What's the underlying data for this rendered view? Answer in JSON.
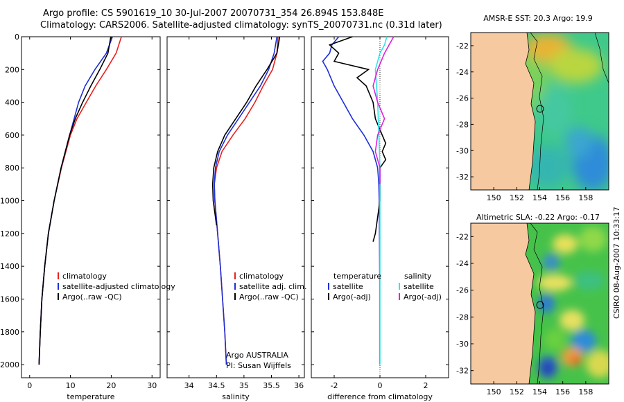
{
  "title_line1": "Argo profile: CS 5901619_10 30-Jul-2007 20070731_354 26.894S 153.848E",
  "title_line2": "Climatology: CARS2006. Satellite-adjusted climatology: synTS_20070731.nc (0.31d later)",
  "side_stamp": "CSIRO 08-Aug-2007 10:33:17",
  "colors": {
    "red": "#e8201c",
    "blue": "#1c2fd8",
    "black": "#000000",
    "cyan": "#2fe6e6",
    "magenta": "#e020e0",
    "land": "#f7c9a0"
  },
  "chart_data": [
    {
      "type": "line",
      "xlabel": "temperature",
      "xlim": [
        -2,
        32
      ],
      "ylim": [
        0,
        2080
      ],
      "xticks": [
        0,
        10,
        20,
        30
      ],
      "yticks": [
        0,
        200,
        400,
        600,
        800,
        1000,
        1200,
        1400,
        1600,
        1800,
        2000
      ],
      "legend": [
        "climatology",
        "satellite-adjusted climatology",
        "Argo(..raw -QC)"
      ],
      "series": [
        {
          "name": "climatology",
          "color": "red",
          "depth": [
            0,
            100,
            200,
            300,
            400,
            500,
            600,
            800,
            1000,
            1200,
            1400,
            1600,
            1800,
            2000
          ],
          "values": [
            22.5,
            21.2,
            18.8,
            16.2,
            13.9,
            11.6,
            10.0,
            7.8,
            6.0,
            4.6,
            3.7,
            3.0,
            2.6,
            2.3
          ]
        },
        {
          "name": "satellite-adjusted climatology",
          "color": "blue",
          "depth": [
            0,
            100,
            200,
            300,
            400,
            500,
            600,
            800,
            1000,
            1200,
            1400,
            1600,
            1800,
            2000
          ],
          "values": [
            20.3,
            18.8,
            16.0,
            13.6,
            12.0,
            10.9,
            9.8,
            7.7,
            6.0,
            4.6,
            3.7,
            3.0,
            2.6,
            2.3
          ]
        },
        {
          "name": "Argo(..raw -QC)",
          "color": "black",
          "depth": [
            0,
            100,
            200,
            300,
            400,
            500,
            600,
            800,
            1000,
            1200,
            1400,
            1600,
            1800,
            2000
          ],
          "values": [
            19.9,
            19.2,
            17.2,
            15.0,
            13.0,
            11.2,
            9.8,
            7.7,
            6.0,
            4.6,
            3.7,
            3.0,
            2.6,
            2.3
          ]
        }
      ]
    },
    {
      "type": "line",
      "xlabel": "salinity",
      "xlim": [
        33.6,
        36.1
      ],
      "ylim": [
        0,
        2080
      ],
      "xticks": [
        34,
        34.5,
        35,
        35.5,
        36
      ],
      "legend": [
        "climatology",
        "satellite adj. clim.",
        "Argo(..raw -QC)"
      ],
      "annotation": [
        "Argo AUSTRALIA",
        "PI: Susan Wijffels"
      ],
      "series": [
        {
          "name": "climatology",
          "color": "red",
          "depth": [
            0,
            100,
            200,
            300,
            400,
            500,
            600,
            700,
            800,
            900,
            1000,
            1200,
            1400,
            1600,
            1800,
            2000
          ],
          "values": [
            35.62,
            35.6,
            35.52,
            35.35,
            35.2,
            35.02,
            34.8,
            34.6,
            34.5,
            34.46,
            34.47,
            34.52,
            34.57,
            34.61,
            34.65,
            34.68
          ]
        },
        {
          "name": "satellite adj. clim.",
          "color": "blue",
          "depth": [
            0,
            100,
            200,
            300,
            400,
            500,
            600,
            700,
            800,
            900,
            1000,
            1200,
            1400,
            1600,
            1800,
            2000
          ],
          "values": [
            35.6,
            35.55,
            35.45,
            35.3,
            35.1,
            34.9,
            34.7,
            34.55,
            34.48,
            34.46,
            34.47,
            34.52,
            34.57,
            34.61,
            34.65,
            34.68
          ]
        },
        {
          "name": "Argo(..raw -QC)",
          "color": "black",
          "depth": [
            0,
            100,
            200,
            300,
            400,
            500,
            600,
            700,
            800,
            900,
            1000,
            1100,
            1150
          ],
          "values": [
            35.65,
            35.6,
            35.42,
            35.22,
            35.05,
            34.85,
            34.65,
            34.52,
            34.45,
            34.43,
            34.44,
            34.48,
            34.5
          ]
        }
      ]
    },
    {
      "type": "line",
      "xlabel": "difference from climatology",
      "xlim": [
        -3,
        3
      ],
      "ylim": [
        0,
        2080
      ],
      "xticks": [
        -2,
        0,
        2
      ],
      "legend_temperature": [
        "temperature",
        "satellite",
        "Argo(-adj)"
      ],
      "legend_salinity": [
        "salinity",
        "satellite",
        "Argo(-adj)"
      ],
      "series": [
        {
          "name": "temperature satellite",
          "color": "blue",
          "depth": [
            0,
            50,
            100,
            150,
            200,
            300,
            400,
            500,
            600,
            700,
            800,
            900,
            1000,
            1200,
            1500,
            2000
          ],
          "values": [
            -1.8,
            -2.1,
            -2.2,
            -2.5,
            -2.3,
            -2.0,
            -1.6,
            -1.2,
            -0.7,
            -0.3,
            -0.1,
            -0.05,
            -0.03,
            -0.02,
            -0.01,
            -0.01
          ]
        },
        {
          "name": "temperature Argo(-adj)",
          "color": "black",
          "depth": [
            0,
            50,
            100,
            150,
            200,
            250,
            300,
            400,
            500,
            600,
            650,
            700,
            750,
            800,
            900,
            1000,
            1100,
            1200,
            1250
          ],
          "values": [
            -1.2,
            -2.2,
            -1.8,
            -2.0,
            -0.5,
            -1.0,
            -0.6,
            -0.3,
            -0.2,
            0.1,
            0.25,
            0.1,
            0.25,
            0.0,
            0.0,
            0.0,
            -0.1,
            -0.2,
            -0.3
          ]
        },
        {
          "name": "salinity satellite",
          "color": "cyan",
          "depth": [
            0,
            50,
            100,
            200,
            400,
            600,
            800,
            1000,
            1500,
            2000
          ],
          "values": [
            0.3,
            0.2,
            0.0,
            -0.2,
            -0.1,
            -0.05,
            0.0,
            0.0,
            0.0,
            0.0
          ]
        },
        {
          "name": "salinity Argo(-adj)",
          "color": "magenta",
          "depth": [
            0,
            50,
            100,
            200,
            300,
            400,
            500,
            600,
            700,
            800,
            900
          ],
          "values": [
            0.6,
            0.4,
            0.2,
            -0.1,
            -0.3,
            -0.1,
            0.2,
            -0.1,
            -0.2,
            0.0,
            0.0
          ]
        }
      ]
    },
    {
      "type": "heatmap",
      "title": "AMSR-E SST: 20.3  Argo: 19.9",
      "xticks": [
        150,
        152,
        154,
        156,
        158
      ],
      "yticks": [
        -22,
        -24,
        -26,
        -28,
        -30,
        -32
      ],
      "xlim": [
        148,
        160
      ],
      "ylim": [
        -33,
        -21
      ]
    },
    {
      "type": "heatmap",
      "title": "Altimetric SLA: -0.22  Argo: -0.17",
      "xticks": [
        150,
        152,
        154,
        156,
        158
      ],
      "yticks": [
        -22,
        -24,
        -26,
        -28,
        -30,
        -32
      ],
      "xlim": [
        148,
        160
      ],
      "ylim": [
        -33,
        -21
      ]
    }
  ]
}
